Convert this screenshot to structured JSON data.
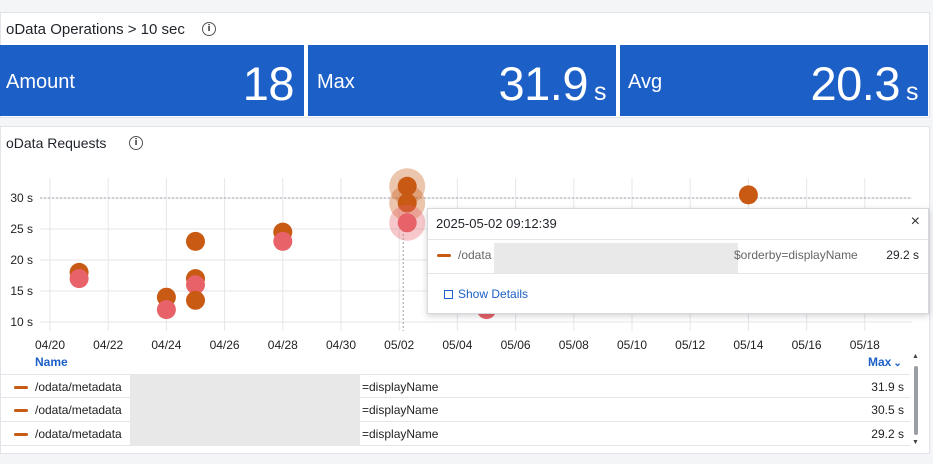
{
  "operations_panel": {
    "title": "oData Operations > 10 sec",
    "stats": [
      {
        "label": "Amount",
        "value": "18",
        "unit": ""
      },
      {
        "label": "Max",
        "value": "31.9",
        "unit": "s"
      },
      {
        "label": "Avg",
        "value": "20.3",
        "unit": "s"
      }
    ],
    "stat_color": "#1c5fc7"
  },
  "requests_panel": {
    "title": "oData Requests"
  },
  "chart_data": {
    "type": "scatter",
    "title": "",
    "xlabel": "",
    "ylabel": "",
    "x_ticks": [
      "04/20",
      "04/22",
      "04/24",
      "04/26",
      "04/28",
      "04/30",
      "05/02",
      "05/04",
      "05/06",
      "05/08",
      "05/10",
      "05/12",
      "05/14",
      "05/16",
      "05/18"
    ],
    "y_ticks": [
      "10 s",
      "15 s",
      "20 s",
      "25 s",
      "30 s"
    ],
    "ylim": [
      9,
      32
    ],
    "grid": true,
    "colors": {
      "dark": "#c85a14",
      "light": "#e8626a"
    },
    "points": [
      {
        "date": "04/21",
        "y": 18.0,
        "shade": "dark"
      },
      {
        "date": "04/21",
        "y": 17.0,
        "shade": "light"
      },
      {
        "date": "04/24",
        "y": 14.0,
        "shade": "dark"
      },
      {
        "date": "04/24",
        "y": 12.0,
        "shade": "light"
      },
      {
        "date": "04/25",
        "y": 23.0,
        "shade": "dark"
      },
      {
        "date": "04/25",
        "y": 17.0,
        "shade": "dark"
      },
      {
        "date": "04/25",
        "y": 16.0,
        "shade": "light"
      },
      {
        "date": "04/25",
        "y": 13.5,
        "shade": "dark"
      },
      {
        "date": "04/28",
        "y": 24.5,
        "shade": "dark"
      },
      {
        "date": "04/28",
        "y": 23.0,
        "shade": "light"
      },
      {
        "date": "05/02",
        "y": 31.9,
        "shade": "dark",
        "highlight": true
      },
      {
        "date": "05/02",
        "y": 29.2,
        "shade": "dark",
        "highlight": true
      },
      {
        "date": "05/02",
        "y": 26.0,
        "shade": "light",
        "highlight": true
      },
      {
        "date": "05/05",
        "y": 12.0,
        "shade": "light"
      },
      {
        "date": "05/14",
        "y": 30.5,
        "shade": "dark"
      }
    ],
    "crosshair": {
      "date": "05/02",
      "y": 30
    }
  },
  "tooltip": {
    "timestamp": "2025-05-02 09:12:39",
    "name_prefix": "/odata",
    "name_suffix": "$orderby=displayName",
    "value": "29.2 s",
    "close": "×",
    "link": "Show Details"
  },
  "table": {
    "col_name": "Name",
    "col_max": "Max",
    "sort_icon": "⌄",
    "rows": [
      {
        "prefix": "/odata/metadata",
        "suffix": "=displayName",
        "value": "31.9 s"
      },
      {
        "prefix": "/odata/metadata",
        "suffix": "=displayName",
        "value": "30.5 s"
      },
      {
        "prefix": "/odata/metadata",
        "suffix": "=displayName",
        "value": "29.2 s"
      }
    ]
  },
  "scrollbar": {
    "up": "▲",
    "down": "▼"
  }
}
